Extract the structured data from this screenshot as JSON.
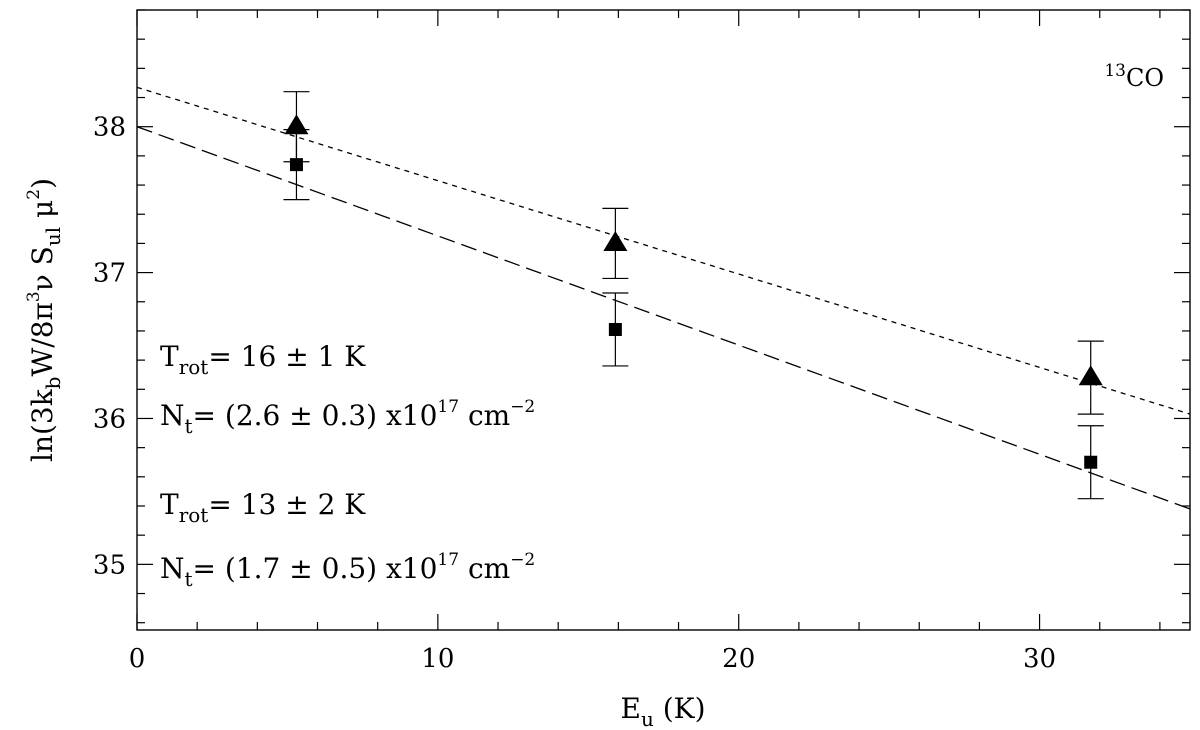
{
  "chart_data": {
    "type": "scatter",
    "xlabel_main": "E",
    "xlabel_sub": "u",
    "xlabel_tail": " (K)",
    "ylabel_parts": [
      {
        "t": "ln(3k"
      },
      {
        "t": "b",
        "k": "sub"
      },
      {
        "t": "W/8π"
      },
      {
        "t": "3",
        "k": "sup"
      },
      {
        "t": "ν S"
      },
      {
        "t": "ul",
        "k": "sub"
      },
      {
        "t": " μ"
      },
      {
        "t": "2",
        "k": "sup"
      },
      {
        "t": ")"
      }
    ],
    "xlim": [
      0,
      35
    ],
    "ylim": [
      34.55,
      38.8
    ],
    "x_ticks": [
      0,
      10,
      20,
      30
    ],
    "y_ticks": [
      35,
      36,
      37,
      38
    ],
    "x_minor_step": 2,
    "y_minor_step": 0.2,
    "species_sup": "13",
    "species_main": "CO",
    "series": [
      {
        "marker": "triangle",
        "x": [
          5.3,
          15.9,
          31.7
        ],
        "y": [
          38.0,
          37.2,
          36.28
        ],
        "err": [
          0.24,
          0.24,
          0.25
        ],
        "fit_line": {
          "style": "short-dash",
          "y_at_x0": 38.27,
          "y_at_x35": 36.03
        }
      },
      {
        "marker": "square",
        "x": [
          5.3,
          15.9,
          31.7
        ],
        "y": [
          37.74,
          36.61,
          35.7
        ],
        "err": [
          0.24,
          0.25,
          0.25
        ],
        "fit_line": {
          "style": "long-dash",
          "y_at_x0": 38.0,
          "y_at_x35": 35.38
        }
      }
    ],
    "annotations": [
      {
        "t_label": "T",
        "t_sub": "rot",
        "t_text": "= 16 ± 1 K",
        "n_label": "N",
        "n_sub": "t",
        "n_text": "= (2.6 ± 0.3) x10",
        "n_exp": "17",
        "n_unit": " cm",
        "n_unit_exp": "−2"
      },
      {
        "t_label": "T",
        "t_sub": "rot",
        "t_text": "= 13 ± 2 K",
        "n_label": "N",
        "n_sub": "t",
        "n_text": "= (1.7 ± 0.5) x10",
        "n_exp": "17",
        "n_unit": " cm",
        "n_unit_exp": "−2"
      }
    ]
  }
}
